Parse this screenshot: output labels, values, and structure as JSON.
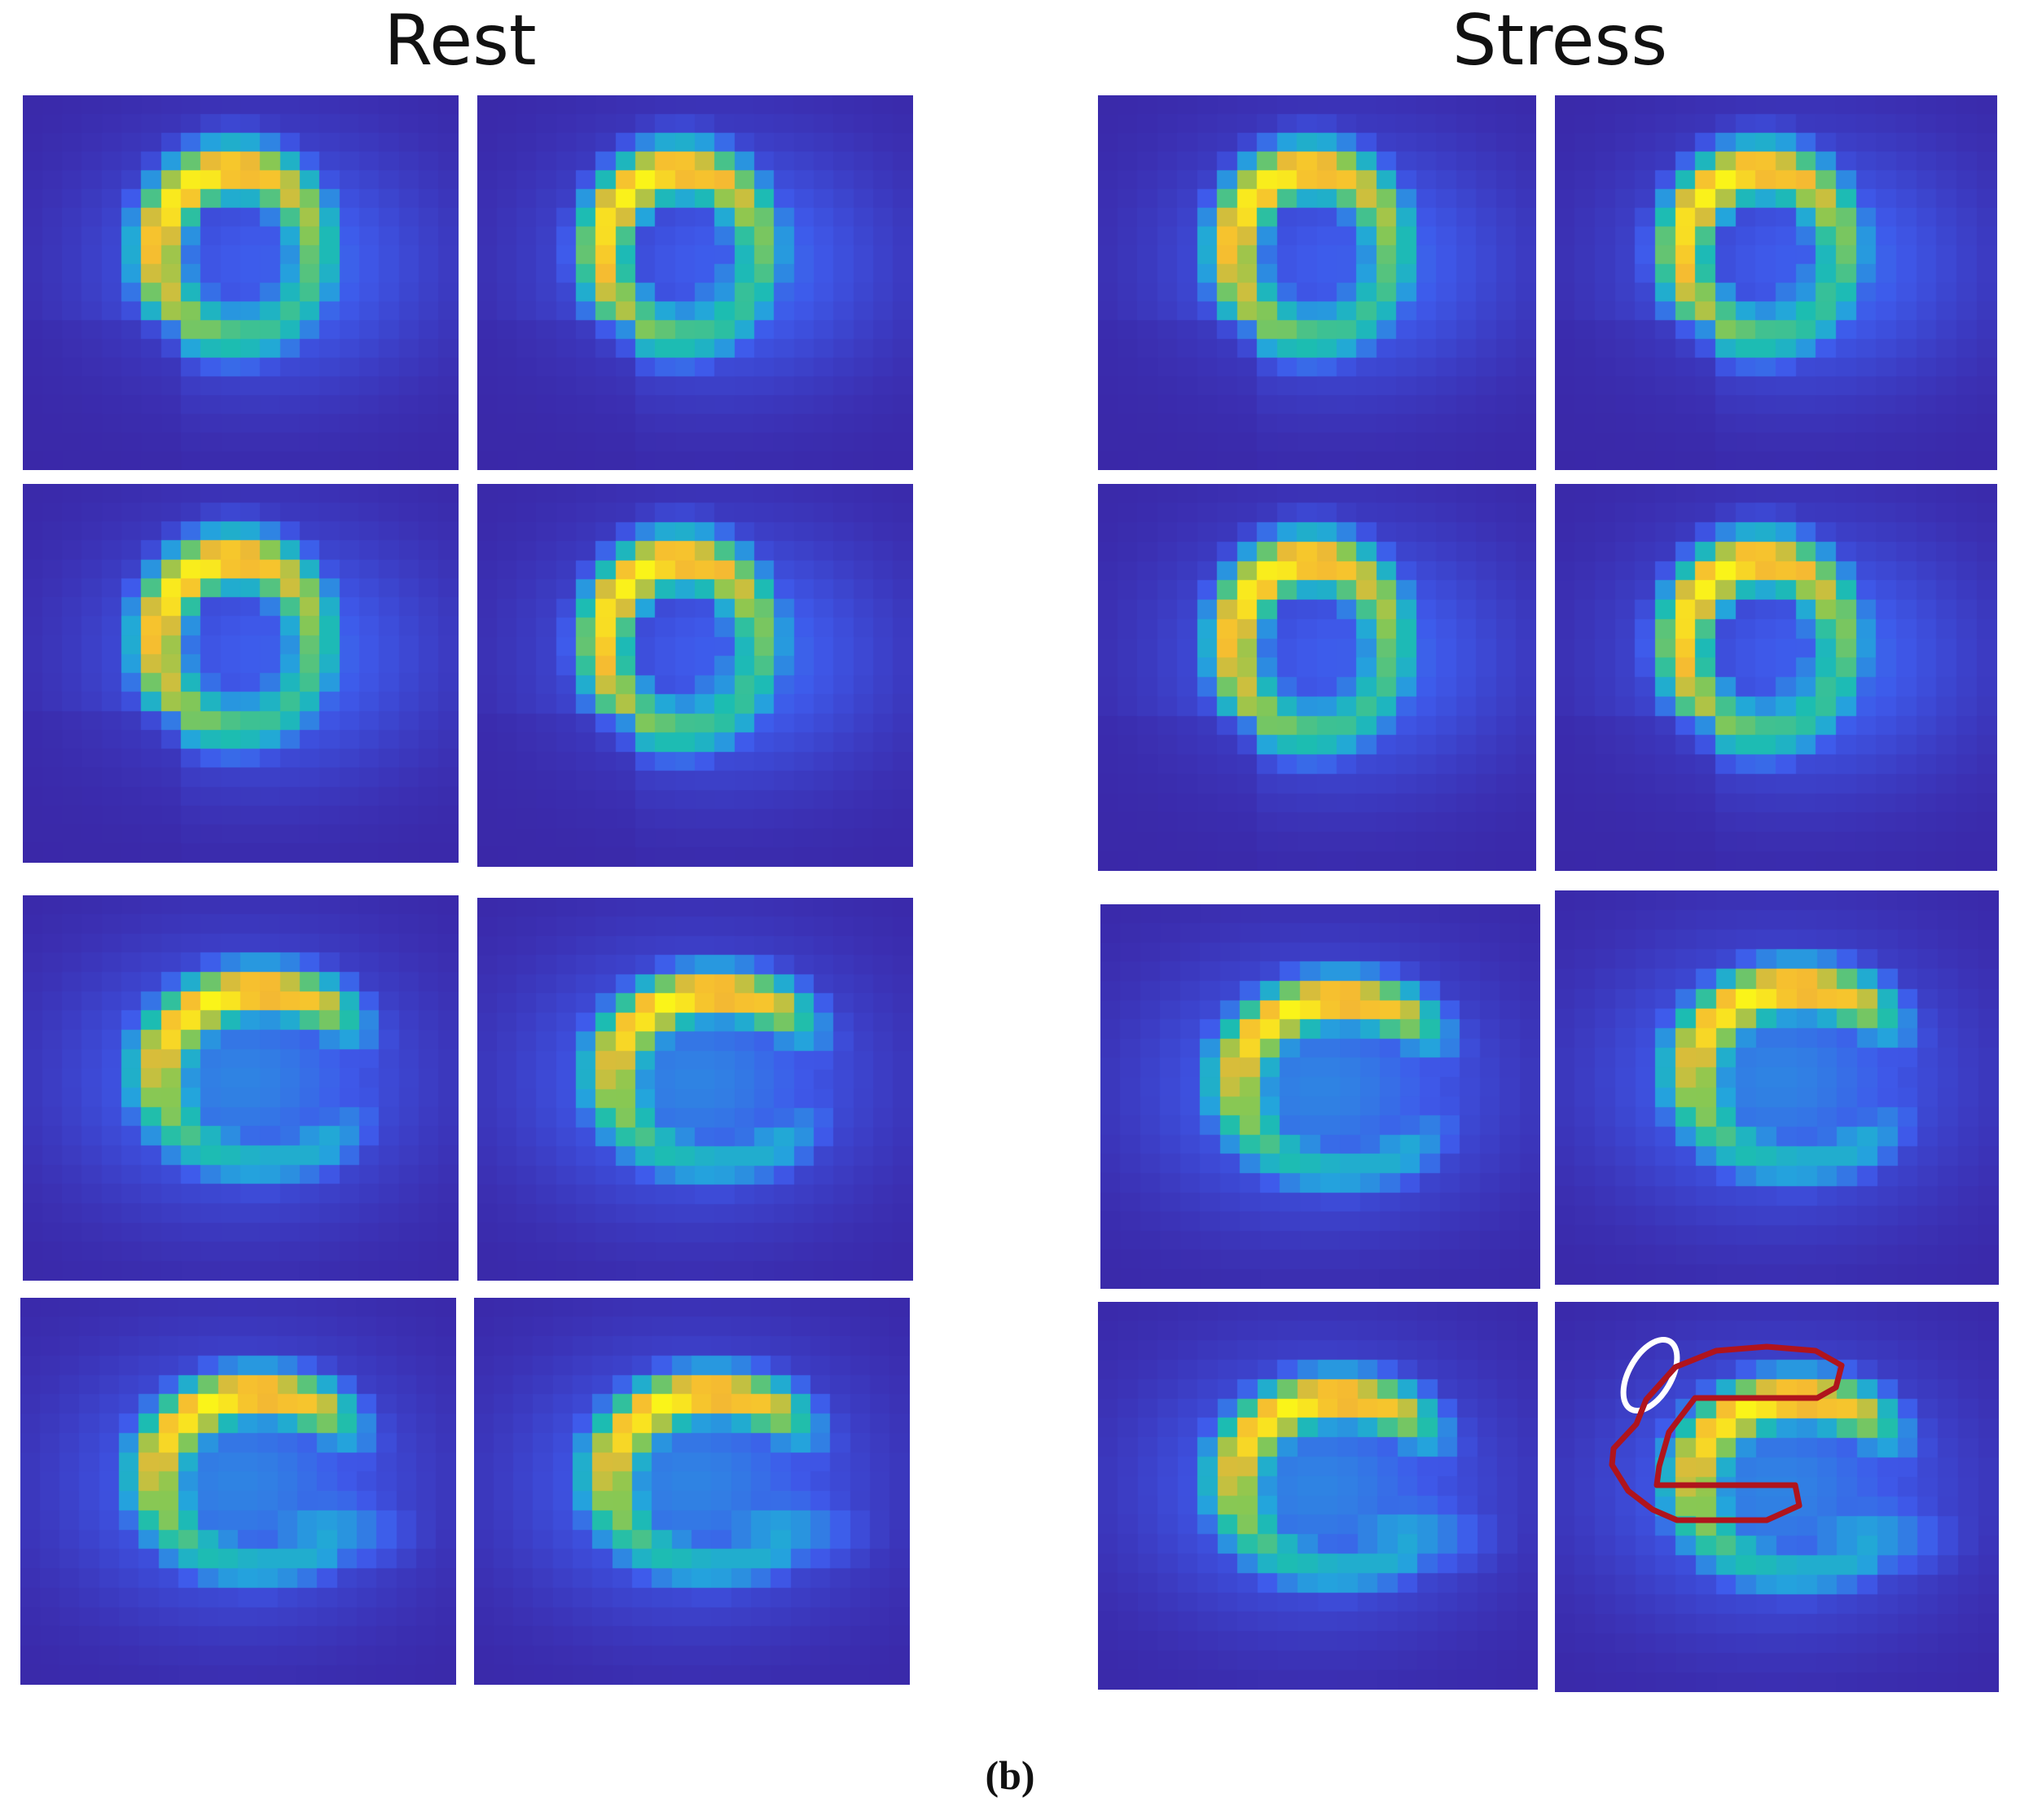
{
  "titles": {
    "rest": "Rest",
    "stress": "Stress"
  },
  "caption": "(b)",
  "colormap": "parula",
  "colors": {
    "background": "#3a28a8",
    "contour_myocardium": "#b0141c",
    "contour_roi": "#ffffff"
  },
  "groups": [
    {
      "id": "rest",
      "panels": [
        {
          "view": "short-axis",
          "row": 1,
          "col": 1
        },
        {
          "view": "short-axis",
          "row": 1,
          "col": 2
        },
        {
          "view": "short-axis",
          "row": 2,
          "col": 1
        },
        {
          "view": "short-axis",
          "row": 2,
          "col": 2
        },
        {
          "view": "long-axis",
          "row": 3,
          "col": 1
        },
        {
          "view": "long-axis",
          "row": 3,
          "col": 2
        },
        {
          "view": "long-axis",
          "row": 4,
          "col": 1
        },
        {
          "view": "long-axis",
          "row": 4,
          "col": 2
        }
      ]
    },
    {
      "id": "stress",
      "panels": [
        {
          "view": "short-axis",
          "row": 1,
          "col": 1
        },
        {
          "view": "short-axis",
          "row": 1,
          "col": 2
        },
        {
          "view": "short-axis",
          "row": 2,
          "col": 1
        },
        {
          "view": "short-axis",
          "row": 2,
          "col": 2
        },
        {
          "view": "long-axis",
          "row": 3,
          "col": 1
        },
        {
          "view": "long-axis",
          "row": 3,
          "col": 2
        },
        {
          "view": "long-axis",
          "row": 4,
          "col": 1
        },
        {
          "view": "long-axis",
          "row": 4,
          "col": 2,
          "annotated": true
        }
      ]
    }
  ]
}
